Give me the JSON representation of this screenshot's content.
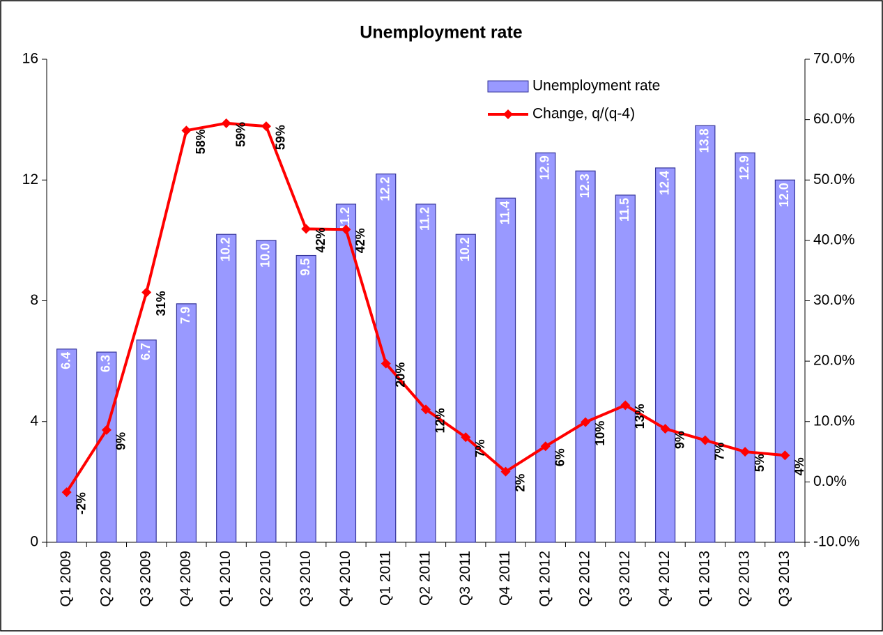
{
  "chart_data": {
    "type": "combo",
    "title": "Unemployment rate",
    "categories": [
      "Q1 2009",
      "Q2 2009",
      "Q3 2009",
      "Q4 2009",
      "Q1 2010",
      "Q2 2010",
      "Q3 2010",
      "Q4 2010",
      "Q1 2011",
      "Q2 2011",
      "Q3 2011",
      "Q4 2011",
      "Q1 2012",
      "Q2 2012",
      "Q3 2012",
      "Q4 2012",
      "Q1 2013",
      "Q2 2013",
      "Q3 2013"
    ],
    "series": [
      {
        "name": "Unemployment rate",
        "type": "bar",
        "color": "#9999ff",
        "values": [
          6.4,
          6.3,
          6.7,
          7.9,
          10.2,
          10.0,
          9.5,
          11.2,
          12.2,
          11.2,
          10.2,
          11.4,
          12.9,
          12.3,
          11.5,
          12.4,
          13.8,
          12.9,
          12.0
        ],
        "value_labels": [
          "6.4",
          "6.3",
          "6.7",
          "7.9",
          "10.2",
          "10.0",
          "9.5",
          "11.2",
          "12.2",
          "11.2",
          "10.2",
          "11.4",
          "12.9",
          "12.3",
          "11.5",
          "12.4",
          "13.8",
          "12.9",
          "12.0"
        ]
      },
      {
        "name": "Change, q/(q-4)",
        "type": "line",
        "axis": "y2",
        "color": "#ff0000",
        "values": [
          -1.7,
          8.6,
          31.4,
          58.2,
          59.4,
          58.9,
          41.9,
          41.8,
          19.6,
          12.0,
          7.4,
          1.7,
          5.9,
          9.9,
          12.7,
          8.8,
          6.9,
          5.0,
          4.4
        ],
        "value_labels": [
          "-2%",
          "9%",
          "31%",
          "58%",
          "59%",
          "59%",
          "42%",
          "42%",
          "20%",
          "12%",
          "7%",
          "2%",
          "6%",
          "10%",
          "13%",
          "9%",
          "7%",
          "5%",
          "4%"
        ]
      }
    ],
    "ylim": [
      0,
      16
    ],
    "yticks": [
      0,
      4,
      8,
      12,
      16
    ],
    "y2lim": [
      -10,
      70
    ],
    "y2ticks": [
      {
        "value": -10,
        "label": "-10.0%"
      },
      {
        "value": 0,
        "label": "0.0%"
      },
      {
        "value": 10,
        "label": "10.0%"
      },
      {
        "value": 20,
        "label": "20.0%"
      },
      {
        "value": 30,
        "label": "30.0%"
      },
      {
        "value": 40,
        "label": "40.0%"
      },
      {
        "value": 50,
        "label": "50.0%"
      },
      {
        "value": 60,
        "label": "60.0%"
      },
      {
        "value": 70,
        "label": "70.0%"
      }
    ],
    "legend": "upper right"
  }
}
